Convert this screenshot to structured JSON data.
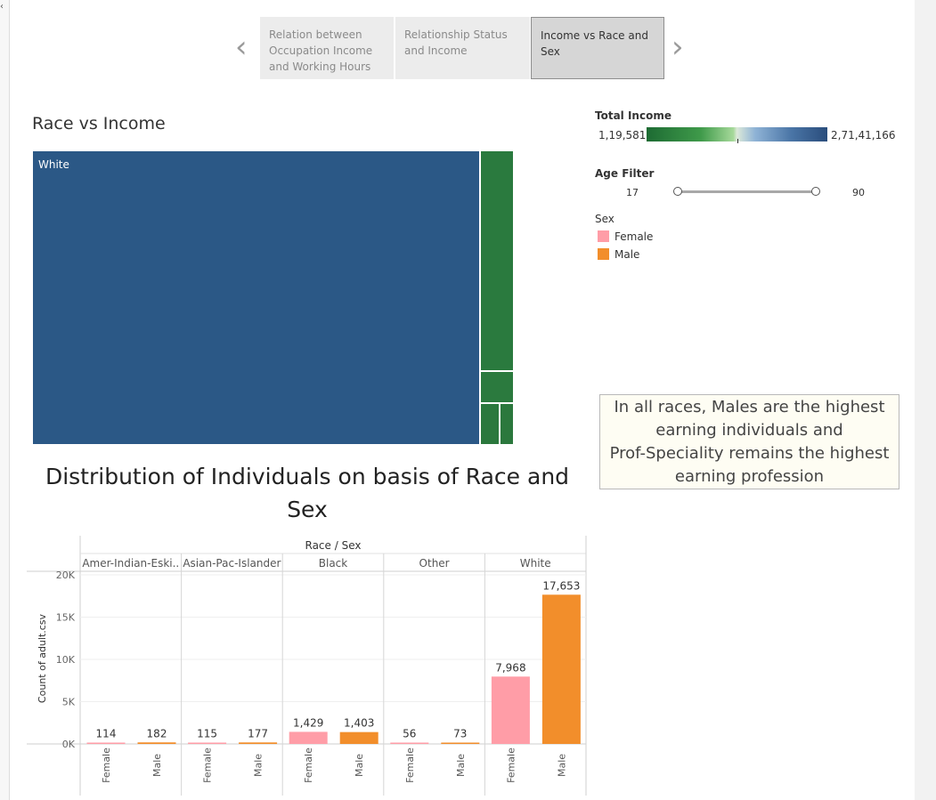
{
  "story": {
    "points": [
      {
        "label": "Relation between Occupation Income and Working Hours"
      },
      {
        "label": "Relationship Status and Income"
      },
      {
        "label": "Income vs Race and Sex"
      }
    ],
    "prev_icon": "chevron-left-icon",
    "next_icon": "chevron-right-icon"
  },
  "treemap": {
    "title": "Race vs Income",
    "tiles": [
      {
        "race": "White",
        "label": "White",
        "color": "#2b5886"
      },
      {
        "race": "Black",
        "label": "",
        "color": "#2a7a3e"
      },
      {
        "race": "Asian-Pac-Islander",
        "label": "",
        "color": "#2b7a3e"
      },
      {
        "race": "Amer-Indian-Eskimo",
        "label": "",
        "color": "#2b783d"
      },
      {
        "race": "Other",
        "label": "",
        "color": "#2b783d"
      }
    ]
  },
  "legend": {
    "income_title": "Total Income",
    "income_min": "1,19,581",
    "income_max": "2,71,41,166",
    "age_title": "Age Filter",
    "age_min": "17",
    "age_max": "90",
    "sex_title": "Sex",
    "sex_items": [
      {
        "label": "Female",
        "color": "#ff9da7"
      },
      {
        "label": "Male",
        "color": "#f28e2b"
      }
    ]
  },
  "annotation": {
    "lines": [
      "In all races, Males are the highest",
      "earning individuals and",
      "Prof-Speciality remains the highest",
      "earning profession"
    ]
  },
  "bar_chart_title": {
    "line1": "Distribution of Individuals on basis of Race and",
    "line2": "Sex"
  },
  "chart_data": {
    "type": "bar",
    "title": "Distribution of Individuals on basis of Race and Sex",
    "header": "Race / Sex",
    "ylabel": "Count of adult.csv",
    "ylim": [
      0,
      20000
    ],
    "yticks": [
      {
        "value": 0,
        "label": "0K"
      },
      {
        "value": 5000,
        "label": "5K"
      },
      {
        "value": 10000,
        "label": "10K"
      },
      {
        "value": 15000,
        "label": "15K"
      },
      {
        "value": 20000,
        "label": "20K"
      }
    ],
    "colors": {
      "Female": "#ff9da7",
      "Male": "#f28e2b"
    },
    "groups": [
      {
        "race": "Amer-Indian-Eski..",
        "bars": [
          {
            "sex": "Female",
            "value": 114,
            "label": "114"
          },
          {
            "sex": "Male",
            "value": 182,
            "label": "182"
          }
        ]
      },
      {
        "race": "Asian-Pac-Islander",
        "bars": [
          {
            "sex": "Female",
            "value": 115,
            "label": "115"
          },
          {
            "sex": "Male",
            "value": 177,
            "label": "177"
          }
        ]
      },
      {
        "race": "Black",
        "bars": [
          {
            "sex": "Female",
            "value": 1429,
            "label": "1,429"
          },
          {
            "sex": "Male",
            "value": 1403,
            "label": "1,403"
          }
        ]
      },
      {
        "race": "Other",
        "bars": [
          {
            "sex": "Female",
            "value": 56,
            "label": "56"
          },
          {
            "sex": "Male",
            "value": 73,
            "label": "73"
          }
        ]
      },
      {
        "race": "White",
        "bars": [
          {
            "sex": "Female",
            "value": 7968,
            "label": "7,968"
          },
          {
            "sex": "Male",
            "value": 17653,
            "label": "17,653"
          }
        ]
      }
    ]
  }
}
